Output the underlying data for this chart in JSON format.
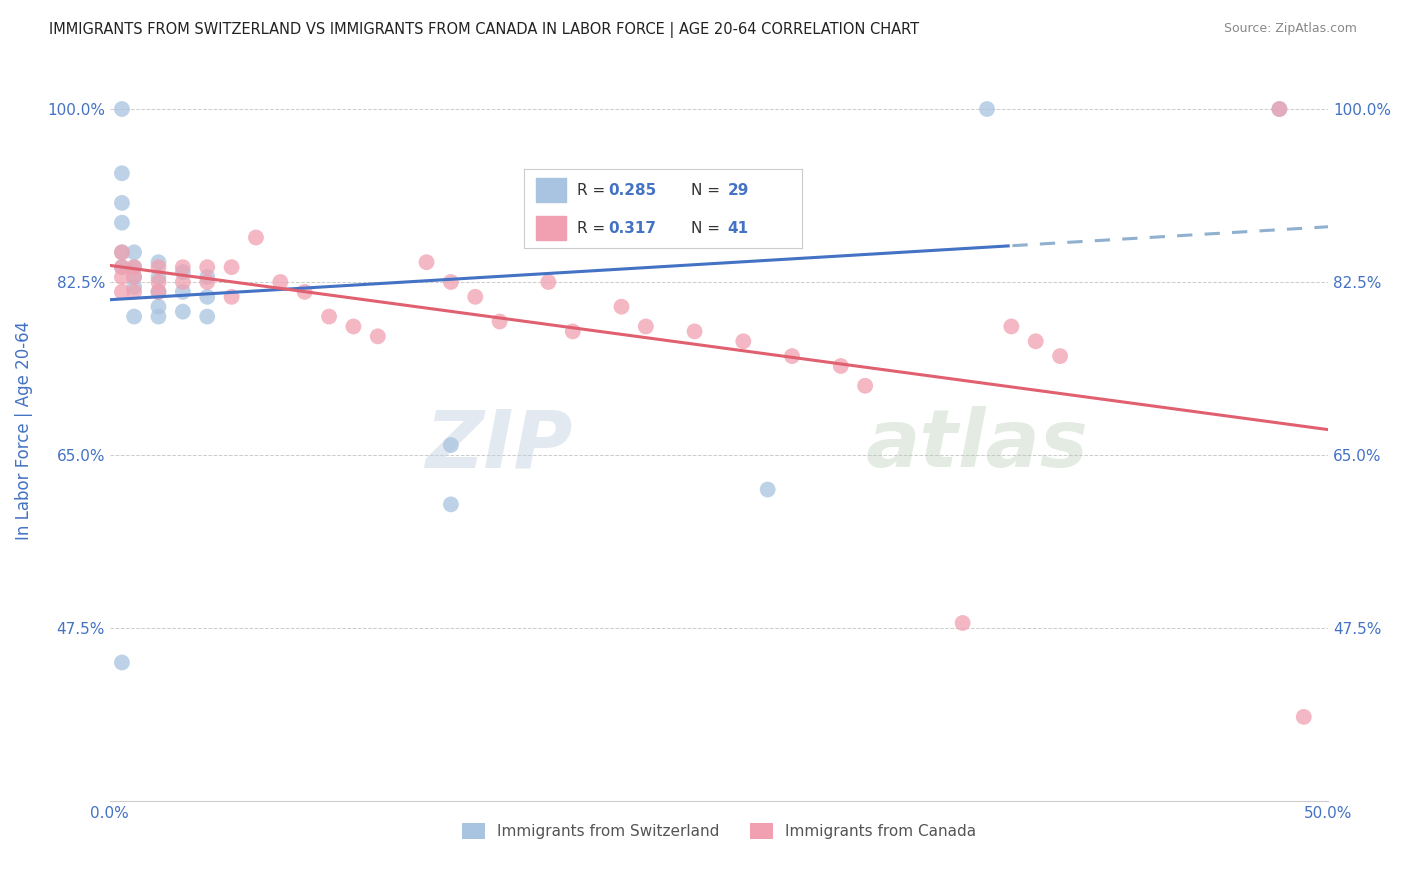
{
  "title": "IMMIGRANTS FROM SWITZERLAND VS IMMIGRANTS FROM CANADA IN LABOR FORCE | AGE 20-64 CORRELATION CHART",
  "source": "Source: ZipAtlas.com",
  "ylabel": "In Labor Force | Age 20-64",
  "xlim": [
    0.0,
    0.5
  ],
  "ylim": [
    0.3,
    1.05
  ],
  "yticks": [
    0.475,
    0.65,
    0.825,
    1.0
  ],
  "ytick_labels": [
    "47.5%",
    "65.0%",
    "82.5%",
    "100.0%"
  ],
  "xticks": [
    0.0,
    0.1,
    0.2,
    0.3,
    0.4,
    0.5
  ],
  "xtick_labels": [
    "0.0%",
    "",
    "",
    "",
    "",
    "50.0%"
  ],
  "background_color": "#ffffff",
  "grid_color": "#cccccc",
  "watermark_zip": "ZIP",
  "watermark_atlas": "atlas",
  "legend_r_blue": "0.285",
  "legend_n_blue": "29",
  "legend_r_pink": "0.317",
  "legend_n_pink": "41",
  "blue_color": "#a8c4e0",
  "pink_color": "#f0a0b0",
  "blue_line_color": "#4472c4",
  "pink_line_color": "#e06070",
  "blue_dashed_color": "#90b0d0",
  "tick_label_color": "#4472c4",
  "axis_label_color": "#4472c4",
  "swiss_x": [
    0.005,
    0.005,
    0.005,
    0.005,
    0.005,
    0.01,
    0.01,
    0.01,
    0.01,
    0.01,
    0.02,
    0.02,
    0.02,
    0.02,
    0.02,
    0.03,
    0.03,
    0.03,
    0.04,
    0.04,
    0.04,
    0.005,
    0.18,
    0.27,
    0.14,
    0.14,
    0.005,
    0.36,
    0.48
  ],
  "swiss_y": [
    0.935,
    0.905,
    0.885,
    0.855,
    0.84,
    0.855,
    0.84,
    0.83,
    0.82,
    0.79,
    0.845,
    0.83,
    0.815,
    0.8,
    0.79,
    0.835,
    0.815,
    0.795,
    0.83,
    0.81,
    0.79,
    0.44,
    0.87,
    0.615,
    0.66,
    0.6,
    1.0,
    1.0,
    1.0
  ],
  "canada_x": [
    0.005,
    0.005,
    0.005,
    0.005,
    0.01,
    0.01,
    0.01,
    0.02,
    0.02,
    0.02,
    0.03,
    0.03,
    0.04,
    0.04,
    0.05,
    0.05,
    0.06,
    0.07,
    0.08,
    0.09,
    0.1,
    0.11,
    0.13,
    0.14,
    0.15,
    0.16,
    0.18,
    0.19,
    0.21,
    0.22,
    0.24,
    0.26,
    0.28,
    0.3,
    0.31,
    0.35,
    0.37,
    0.38,
    0.39,
    0.48,
    0.49
  ],
  "canada_y": [
    0.855,
    0.84,
    0.83,
    0.815,
    0.84,
    0.83,
    0.815,
    0.84,
    0.825,
    0.815,
    0.84,
    0.825,
    0.84,
    0.825,
    0.84,
    0.81,
    0.87,
    0.825,
    0.815,
    0.79,
    0.78,
    0.77,
    0.845,
    0.825,
    0.81,
    0.785,
    0.825,
    0.775,
    0.8,
    0.78,
    0.775,
    0.765,
    0.75,
    0.74,
    0.72,
    0.48,
    0.78,
    0.765,
    0.75,
    1.0,
    0.385
  ]
}
